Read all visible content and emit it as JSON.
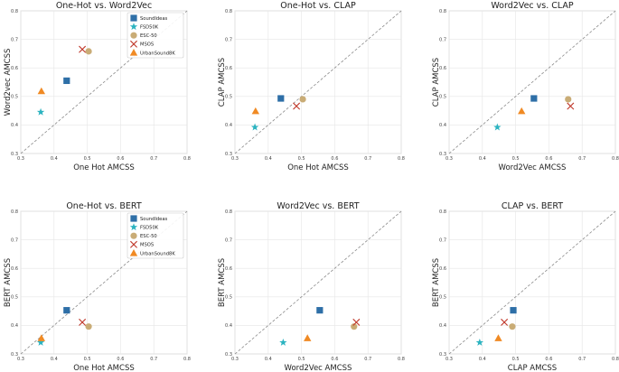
{
  "chart_data": {
    "type": "scatter",
    "xlim": [
      0.3,
      0.8
    ],
    "ylim": [
      0.3,
      0.8
    ],
    "ticks": [
      "0.3",
      "0.4",
      "0.5",
      "0.6",
      "0.7",
      "0.8"
    ],
    "grid": true,
    "diagonal_reference_line": true,
    "series_styles": [
      {
        "name": "SoundIdeas",
        "marker": "square",
        "color": "#2e6fa7"
      },
      {
        "name": "FSD50K",
        "marker": "star",
        "color": "#2bb3c0"
      },
      {
        "name": "ESC-50",
        "marker": "circle",
        "color": "#c9ac76"
      },
      {
        "name": "MSOS",
        "marker": "x",
        "color": "#c0392b"
      },
      {
        "name": "UrbanSound8K",
        "marker": "triangle",
        "color": "#f08a24"
      }
    ],
    "panels": [
      {
        "title": "One-Hot vs. Word2Vec",
        "xlabel": "One Hot AMCSS",
        "ylabel": "Word2vec AMCSS",
        "legend": "top-right",
        "points": [
          {
            "series": "SoundIdeas",
            "x": 0.438,
            "y": 0.555
          },
          {
            "series": "FSD50K",
            "x": 0.36,
            "y": 0.445
          },
          {
            "series": "ESC-50",
            "x": 0.504,
            "y": 0.658
          },
          {
            "series": "MSOS",
            "x": 0.485,
            "y": 0.665
          },
          {
            "series": "UrbanSound8K",
            "x": 0.362,
            "y": 0.518
          }
        ]
      },
      {
        "title": "One-Hot vs. CLAP",
        "xlabel": "One Hot AMCSS",
        "ylabel": "CLAP AMCSS",
        "legend": "none",
        "points": [
          {
            "series": "SoundIdeas",
            "x": 0.438,
            "y": 0.493
          },
          {
            "series": "FSD50K",
            "x": 0.36,
            "y": 0.392
          },
          {
            "series": "ESC-50",
            "x": 0.504,
            "y": 0.49
          },
          {
            "series": "MSOS",
            "x": 0.485,
            "y": 0.466
          },
          {
            "series": "UrbanSound8K",
            "x": 0.362,
            "y": 0.448
          }
        ]
      },
      {
        "title": "Word2Vec vs. CLAP",
        "xlabel": "Word2Vec AMCSS",
        "ylabel": "CLAP AMCSS",
        "legend": "none",
        "points": [
          {
            "series": "SoundIdeas",
            "x": 0.555,
            "y": 0.493
          },
          {
            "series": "FSD50K",
            "x": 0.445,
            "y": 0.392
          },
          {
            "series": "ESC-50",
            "x": 0.658,
            "y": 0.49
          },
          {
            "series": "MSOS",
            "x": 0.665,
            "y": 0.466
          },
          {
            "series": "UrbanSound8K",
            "x": 0.518,
            "y": 0.448
          }
        ]
      },
      {
        "title": "One-Hot vs. BERT",
        "xlabel": "One Hot AMCSS",
        "ylabel": "BERT AMCSS",
        "legend": "top-right",
        "points": [
          {
            "series": "SoundIdeas",
            "x": 0.438,
            "y": 0.453
          },
          {
            "series": "FSD50K",
            "x": 0.36,
            "y": 0.34
          },
          {
            "series": "ESC-50",
            "x": 0.504,
            "y": 0.396
          },
          {
            "series": "MSOS",
            "x": 0.485,
            "y": 0.411
          },
          {
            "series": "UrbanSound8K",
            "x": 0.362,
            "y": 0.355
          }
        ]
      },
      {
        "title": "Word2Vec vs. BERT",
        "xlabel": "Word2Vec AMCSS",
        "ylabel": "BERT AMCSS",
        "legend": "none",
        "points": [
          {
            "series": "SoundIdeas",
            "x": 0.555,
            "y": 0.453
          },
          {
            "series": "FSD50K",
            "x": 0.445,
            "y": 0.34
          },
          {
            "series": "ESC-50",
            "x": 0.658,
            "y": 0.396
          },
          {
            "series": "MSOS",
            "x": 0.665,
            "y": 0.411
          },
          {
            "series": "UrbanSound8K",
            "x": 0.518,
            "y": 0.355
          }
        ]
      },
      {
        "title": "CLAP vs. BERT",
        "xlabel": "CLAP AMCSS",
        "ylabel": "BERT AMCSS",
        "legend": "none",
        "points": [
          {
            "series": "SoundIdeas",
            "x": 0.493,
            "y": 0.453
          },
          {
            "series": "FSD50K",
            "x": 0.392,
            "y": 0.34
          },
          {
            "series": "ESC-50",
            "x": 0.49,
            "y": 0.396
          },
          {
            "series": "MSOS",
            "x": 0.466,
            "y": 0.411
          },
          {
            "series": "UrbanSound8K",
            "x": 0.448,
            "y": 0.355
          }
        ]
      }
    ]
  }
}
